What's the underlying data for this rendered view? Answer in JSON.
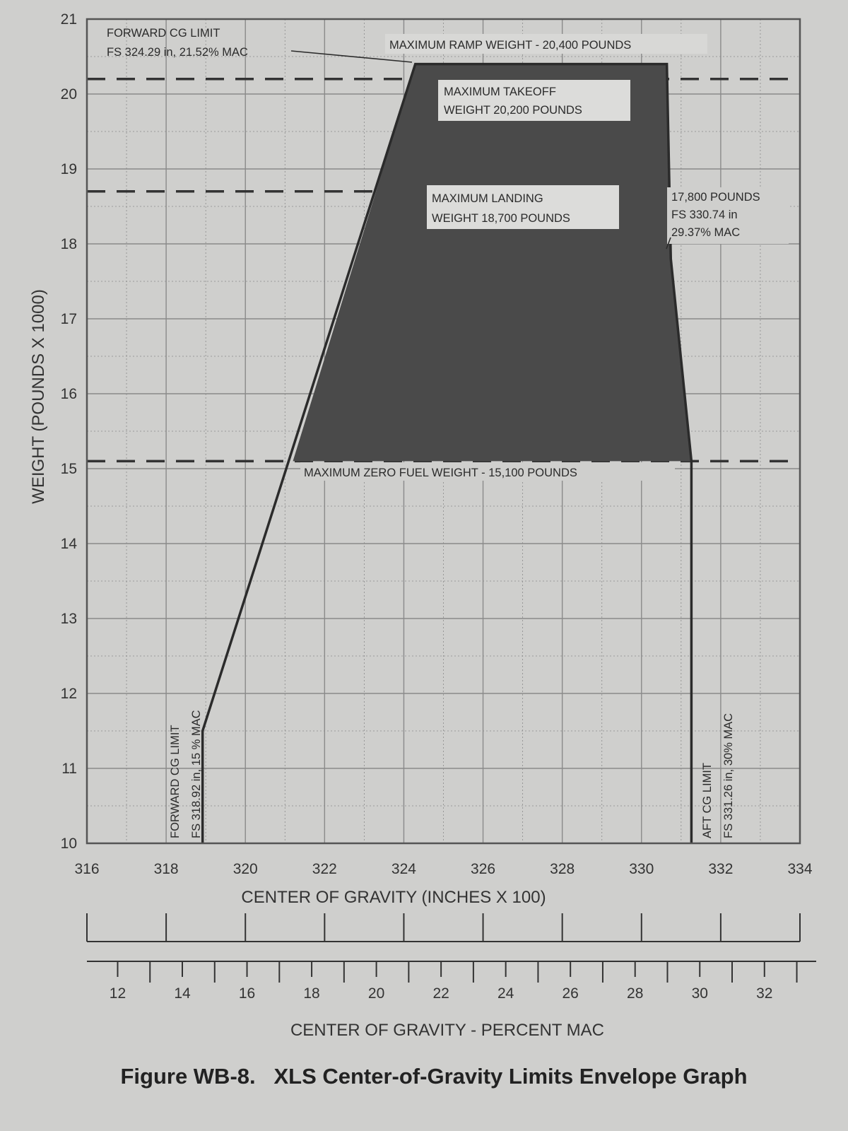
{
  "chart_data": {
    "type": "area",
    "title": "Figure WB-8.   XLS Center-of-Gravity Limits Envelope Graph",
    "xlabel": "CENTER OF GRAVITY (INCHES X 100)",
    "ylabel": "WEIGHT (POUNDS X 1000)",
    "x2label": "CENTER OF GRAVITY - PERCENT MAC",
    "xlim": [
      316,
      334
    ],
    "ylim": [
      10,
      21
    ],
    "x2lim": [
      11.05,
      33.6
    ],
    "xticks": [
      "316",
      "318",
      "320",
      "322",
      "324",
      "326",
      "328",
      "330",
      "332",
      "334"
    ],
    "yticks": [
      "10",
      "11",
      "12",
      "13",
      "14",
      "15",
      "16",
      "17",
      "18",
      "19",
      "20",
      "21"
    ],
    "x2ticks": [
      "12",
      "14",
      "16",
      "18",
      "20",
      "22",
      "24",
      "26",
      "28",
      "30",
      "32"
    ],
    "grid": true,
    "envelope": {
      "x": [
        318.92,
        318.92,
        324.29,
        330.64,
        330.74,
        331.26,
        331.26
      ],
      "y": [
        10.0,
        11.5,
        20.4,
        20.4,
        17.8,
        15.1,
        10.0
      ]
    },
    "shaded_region": {
      "x": [
        321.2,
        324.29,
        330.64,
        330.74,
        331.26
      ],
      "y": [
        15.1,
        20.4,
        20.4,
        17.8,
        15.1
      ]
    },
    "reference_lines": [
      {
        "weight": 20.2,
        "style": "dashed"
      },
      {
        "weight": 18.7,
        "style": "dashed"
      },
      {
        "weight": 15.1,
        "style": "dashed"
      }
    ],
    "annotations": {
      "forward_cg_top": [
        "FORWARD CG LIMIT",
        "FS 324.29 in, 21.52% MAC"
      ],
      "max_ramp": "MAXIMUM RAMP WEIGHT - 20,400 POUNDS",
      "max_takeoff": [
        "MAXIMUM TAKEOFF",
        "WEIGHT 20,200 POUNDS"
      ],
      "max_landing": [
        "MAXIMUM LANDING",
        "WEIGHT 18,700 POUNDS"
      ],
      "aft_point": [
        "17,800 POUNDS",
        "FS 330.74 in",
        "29.37% MAC"
      ],
      "max_zero_fuel": "MAXIMUM ZERO FUEL WEIGHT - 15,100 POUNDS",
      "forward_cg_bottom": [
        "FORWARD CG LIMIT",
        "FS 318.92 in, 15 % MAC"
      ],
      "aft_cg_limit": [
        "AFT CG LIMIT",
        "FS 331.26 in, 30% MAC"
      ]
    },
    "colors": {
      "background": "#cfcfcd",
      "shaded": "#4a4a4a",
      "line": "#2b2b2b",
      "grid": "#8a8a8a"
    }
  }
}
